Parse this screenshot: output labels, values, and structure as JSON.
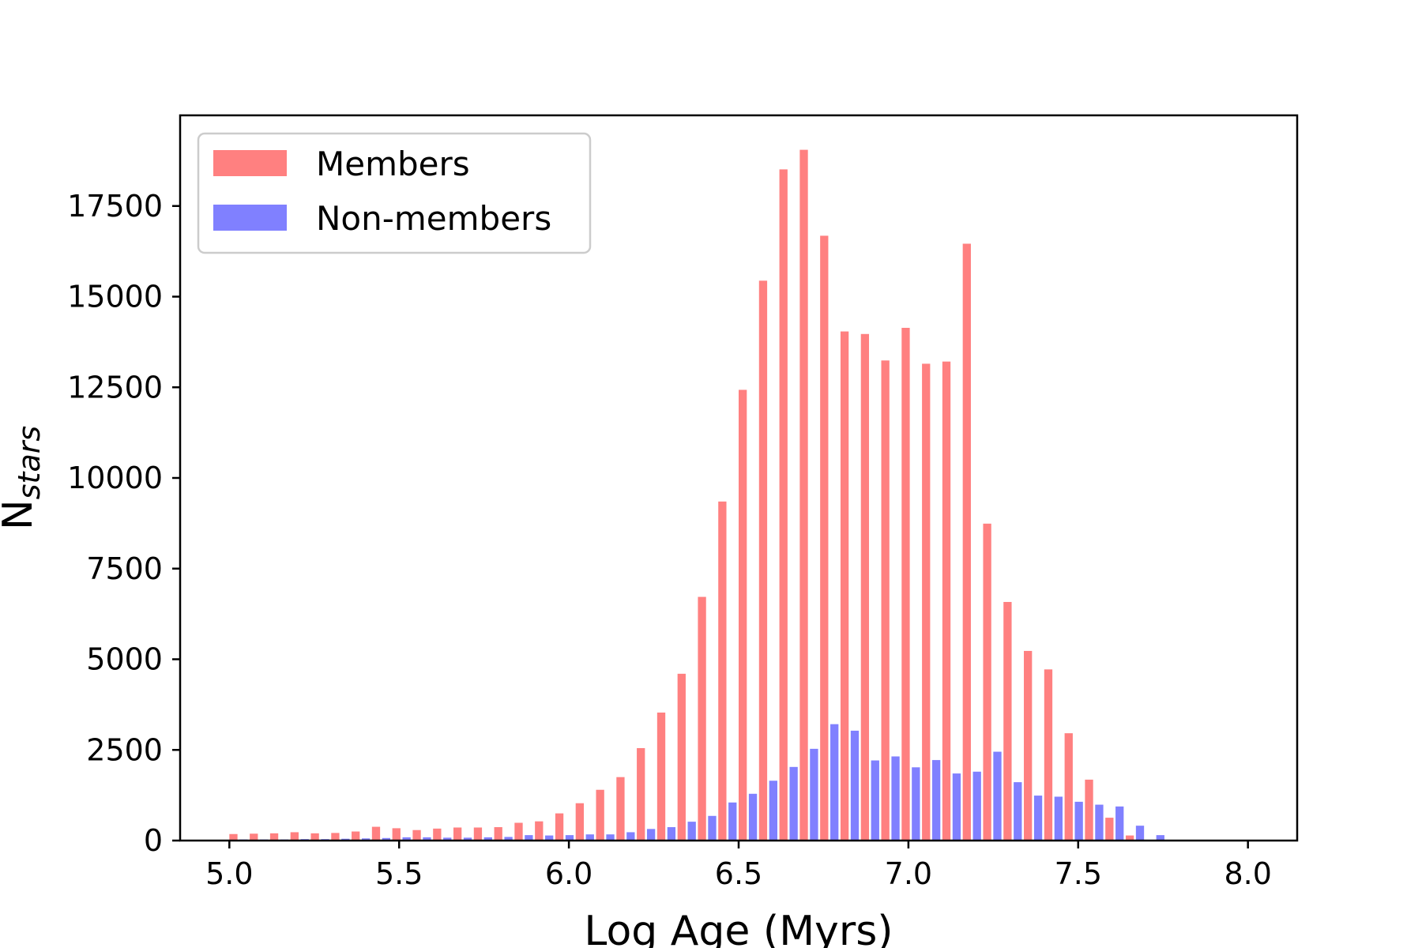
{
  "chart_data": {
    "type": "bar",
    "xlabel": "Log Age (Myrs)",
    "ylabel": "N",
    "ylabel_sub": "stars",
    "xlim": [
      4.855,
      8.145
    ],
    "ylim": [
      0,
      20000
    ],
    "xticks": [
      5.0,
      5.5,
      6.0,
      6.5,
      7.0,
      7.5,
      8.0
    ],
    "xtick_labels": [
      "5.0",
      "5.5",
      "6.0",
      "6.5",
      "7.0",
      "7.5",
      "8.0"
    ],
    "yticks": [
      0,
      2500,
      5000,
      7500,
      10000,
      12500,
      15000,
      17500
    ],
    "ytick_labels": [
      "0",
      "2500",
      "5000",
      "7500",
      "10000",
      "12500",
      "15000",
      "17500"
    ],
    "bin_start": 5.0,
    "bin_width": 0.06,
    "grid": false,
    "legend_position": "top-left",
    "series": [
      {
        "name": "Members",
        "color": "#ff8080",
        "values": [
          180,
          190,
          200,
          230,
          200,
          210,
          250,
          380,
          340,
          290,
          330,
          360,
          360,
          370,
          490,
          530,
          750,
          1030,
          1400,
          1750,
          2550,
          3530,
          4600,
          6720,
          9350,
          12430,
          15440,
          18510,
          19050,
          16680,
          14040,
          13970,
          13240,
          14140,
          13150,
          13210,
          16460,
          8740,
          6580,
          5230,
          4720,
          2960,
          1680,
          630,
          140,
          20,
          0,
          0,
          0,
          0,
          0
        ]
      },
      {
        "name": "Non-members",
        "color": "#8080ff",
        "values": [
          30,
          30,
          30,
          40,
          40,
          50,
          60,
          70,
          90,
          90,
          80,
          80,
          90,
          100,
          150,
          140,
          150,
          170,
          170,
          230,
          320,
          370,
          520,
          680,
          1050,
          1290,
          1650,
          2030,
          2530,
          3210,
          3030,
          2210,
          2320,
          2020,
          2220,
          1850,
          1900,
          2450,
          1610,
          1240,
          1210,
          1070,
          990,
          940,
          410,
          150,
          20,
          0,
          0,
          0,
          0
        ]
      }
    ]
  }
}
